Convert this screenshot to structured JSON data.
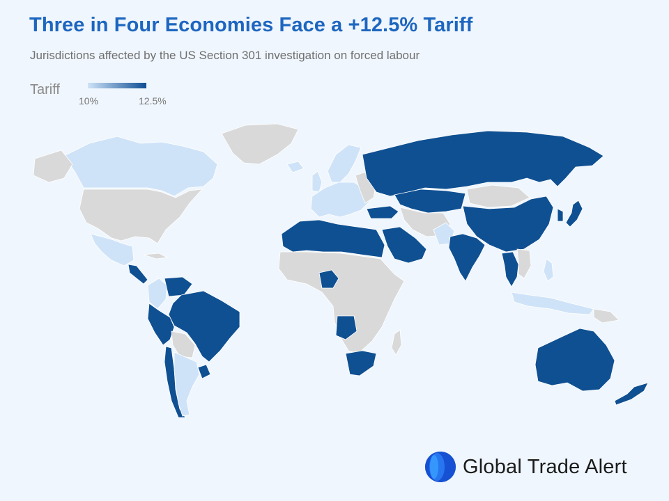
{
  "header": {
    "title": "Three in Four Economies Face a +12.5% Tariff",
    "subtitle": "Jurisdictions affected by the US Section 301 investigation on forced labour"
  },
  "legend": {
    "title": "Tariff",
    "min_label": "10%",
    "max_label": "12.5%",
    "color_min": "#cfe3f8",
    "color_max": "#0e4e93"
  },
  "colors": {
    "background": "#eff6fd",
    "not_affected": "#d9d9d9",
    "tariff_10": "#cfe3f8",
    "tariff_12_5": "#0f5092",
    "title": "#1d66c0"
  },
  "map": {
    "type": "choropleth-world",
    "value_field": "tariff_percent",
    "regions": [
      {
        "name": "Canada",
        "tariff_percent": 10
      },
      {
        "name": "Mexico",
        "tariff_percent": 10
      },
      {
        "name": "Central America",
        "tariff_percent": 12.5
      },
      {
        "name": "Colombia",
        "tariff_percent": 10
      },
      {
        "name": "Venezuela",
        "tariff_percent": 12.5
      },
      {
        "name": "Brazil",
        "tariff_percent": 12.5
      },
      {
        "name": "Peru",
        "tariff_percent": 12.5
      },
      {
        "name": "Chile",
        "tariff_percent": 12.5
      },
      {
        "name": "Argentina",
        "tariff_percent": 10
      },
      {
        "name": "Uruguay",
        "tariff_percent": 12.5
      },
      {
        "name": "European Union",
        "tariff_percent": 10
      },
      {
        "name": "Norway",
        "tariff_percent": 10
      },
      {
        "name": "United Kingdom",
        "tariff_percent": 10
      },
      {
        "name": "Turkey",
        "tariff_percent": 12.5
      },
      {
        "name": "Russia",
        "tariff_percent": 12.5
      },
      {
        "name": "Kazakhstan",
        "tariff_percent": 12.5
      },
      {
        "name": "China",
        "tariff_percent": 12.5
      },
      {
        "name": "Japan",
        "tariff_percent": 12.5
      },
      {
        "name": "South Korea",
        "tariff_percent": 12.5
      },
      {
        "name": "India",
        "tariff_percent": 12.5
      },
      {
        "name": "Pakistan",
        "tariff_percent": 10
      },
      {
        "name": "Saudi Arabia",
        "tariff_percent": 12.5
      },
      {
        "name": "Egypt",
        "tariff_percent": 12.5
      },
      {
        "name": "Libya",
        "tariff_percent": 12.5
      },
      {
        "name": "Algeria",
        "tariff_percent": 12.5
      },
      {
        "name": "Morocco",
        "tariff_percent": 12.5
      },
      {
        "name": "Nigeria",
        "tariff_percent": 12.5
      },
      {
        "name": "Angola",
        "tariff_percent": 12.5
      },
      {
        "name": "South Africa",
        "tariff_percent": 12.5
      },
      {
        "name": "Thailand",
        "tariff_percent": 12.5
      },
      {
        "name": "Indonesia",
        "tariff_percent": 10
      },
      {
        "name": "Philippines",
        "tariff_percent": 10
      },
      {
        "name": "Australia",
        "tariff_percent": 12.5
      },
      {
        "name": "New Zealand",
        "tariff_percent": 12.5
      }
    ]
  },
  "branding": {
    "name": "Global Trade Alert",
    "logo": "globe-layers-icon"
  }
}
